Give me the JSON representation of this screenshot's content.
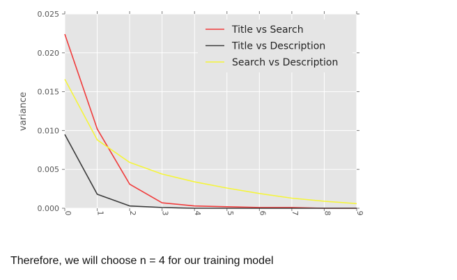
{
  "chart_data": {
    "type": "line",
    "title": "",
    "xlabel": "",
    "ylabel": "variance",
    "x": [
      0,
      1,
      2,
      3,
      4,
      5,
      6,
      7,
      8,
      9
    ],
    "xlim": [
      0,
      9
    ],
    "ylim": [
      0,
      0.025
    ],
    "xticks": [
      "0",
      "1",
      "2",
      "3",
      "4",
      "5",
      "6",
      "7",
      "8",
      "9"
    ],
    "yticks": [
      "0.000",
      "0.005",
      "0.010",
      "0.015",
      "0.020",
      "0.025"
    ],
    "grid": true,
    "legend_position": "top-right",
    "series": [
      {
        "name": "Title vs Search",
        "color": "#f03a3a",
        "values": [
          0.0224,
          0.0102,
          0.0031,
          0.0007,
          0.0003,
          0.0002,
          0.0001,
          0.0001,
          0.0,
          0.0
        ]
      },
      {
        "name": "Title vs Description",
        "color": "#3a3a3a",
        "values": [
          0.0095,
          0.0018,
          0.0003,
          0.0001,
          0.0,
          0.0,
          0.0,
          0.0,
          0.0,
          0.0
        ]
      },
      {
        "name": "Search vs Description",
        "color": "#f5f53a",
        "values": [
          0.0166,
          0.0088,
          0.0059,
          0.0044,
          0.0034,
          0.0026,
          0.0019,
          0.0013,
          0.0009,
          0.0006
        ]
      }
    ]
  },
  "caption": "Therefore, we will choose n = 4 for our training model"
}
